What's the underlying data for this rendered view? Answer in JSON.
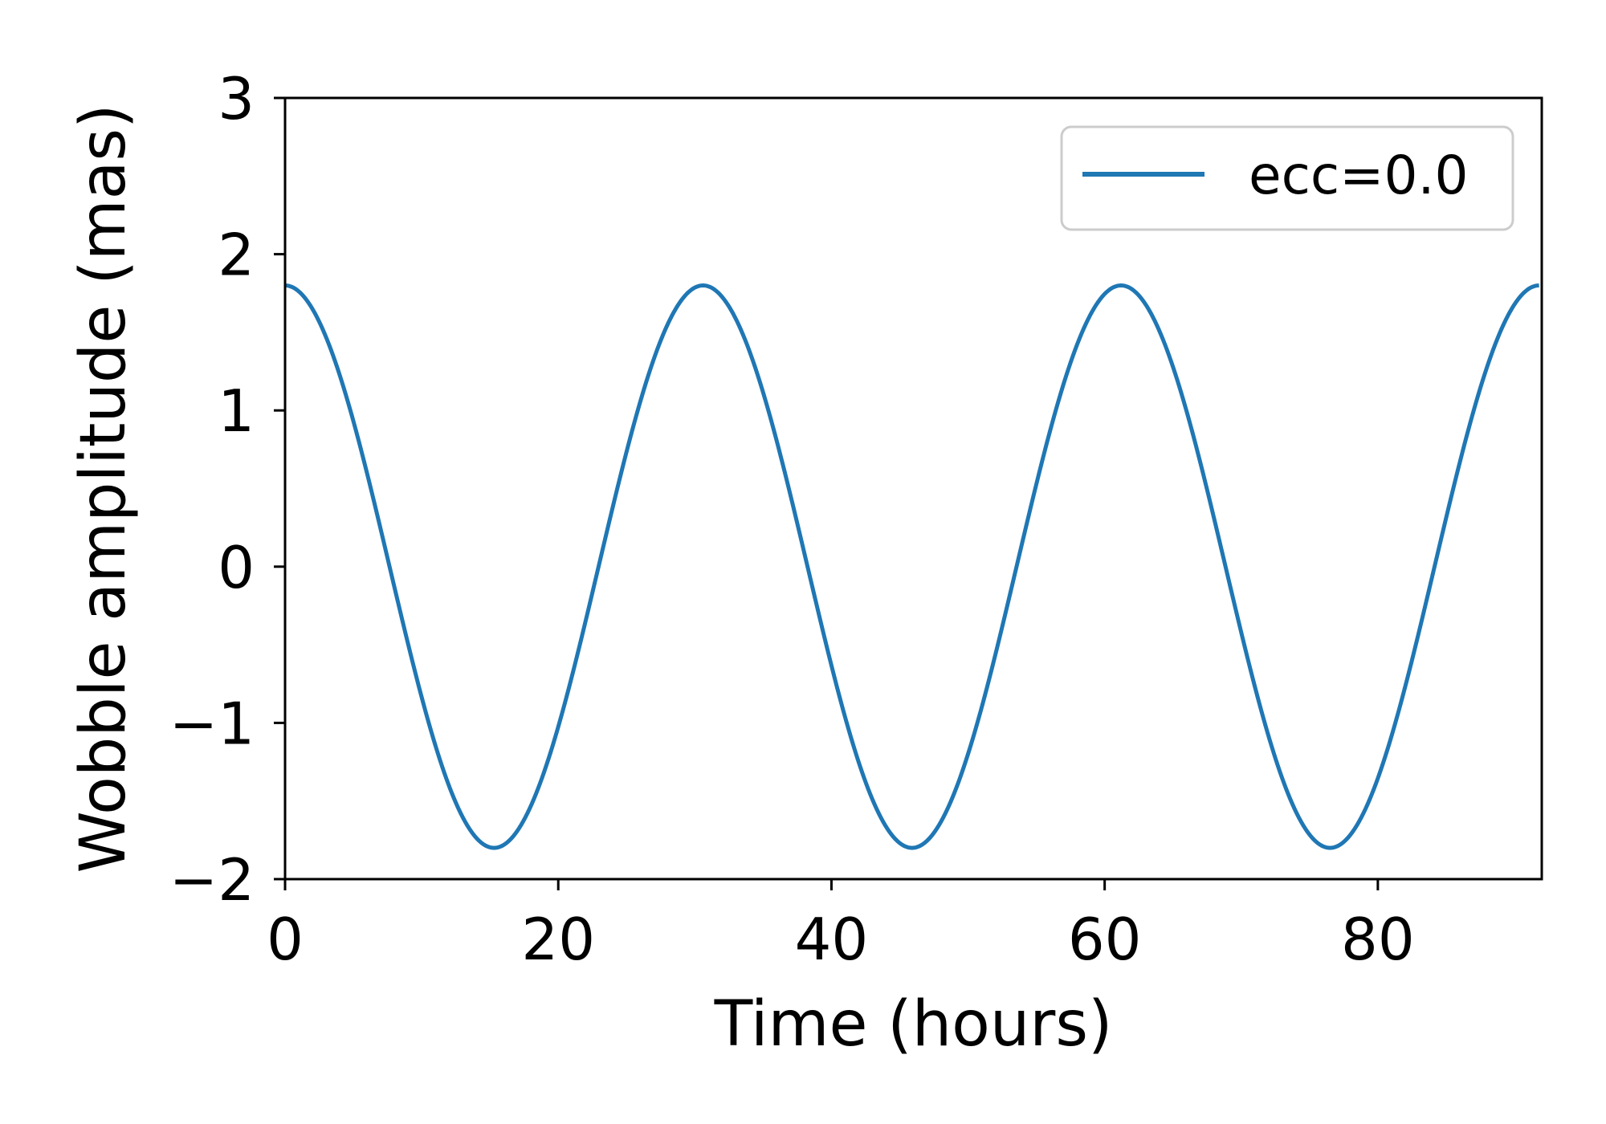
{
  "chart_data": {
    "type": "line",
    "title": "",
    "xlabel": "Time (hours)",
    "ylabel": "Wobble amplitude (mas)",
    "xlim": [
      0,
      92
    ],
    "ylim": [
      -2,
      3
    ],
    "xticks": [
      0,
      20,
      40,
      60,
      80
    ],
    "xtick_labels": [
      "0",
      "20",
      "40",
      "60",
      "80"
    ],
    "yticks": [
      -2,
      -1,
      0,
      1,
      2,
      3
    ],
    "ytick_labels": [
      "−2",
      "−1",
      "0",
      "1",
      "2",
      "3"
    ],
    "grid": false,
    "legend": {
      "placement": "top-right",
      "entries": [
        "ecc=0.0"
      ]
    },
    "series": [
      {
        "name": "ecc=0.0",
        "color": "#1f77b4",
        "x": [
          0,
          15.3,
          30.6,
          45.9,
          61.2,
          76.5,
          91.8
        ],
        "y": [
          1.8,
          -1.8,
          1.8,
          -1.8,
          1.8,
          -1.8,
          1.8
        ],
        "amplitude": 1.8,
        "period": 30.6
      }
    ]
  }
}
